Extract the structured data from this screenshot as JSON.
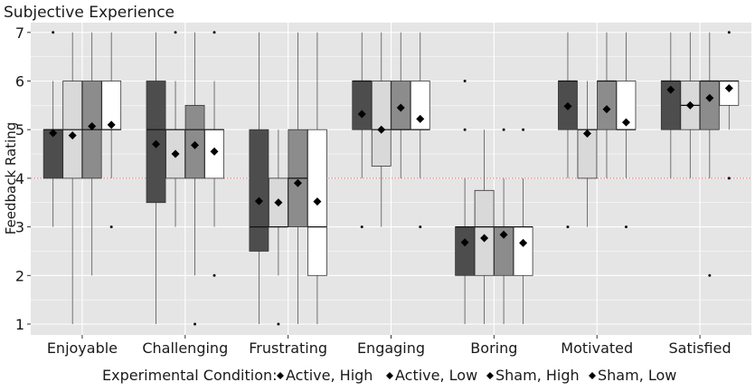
{
  "chart_data": {
    "type": "boxplot",
    "title": "Subjective Experience",
    "xlabel": "",
    "ylabel": "Feedback Rating",
    "ylim": [
      0.6,
      7.3
    ],
    "yticks": [
      1,
      2,
      3,
      4,
      5,
      6,
      7
    ],
    "grid": true,
    "reference_line": {
      "y": 4,
      "color": "#e8707a",
      "style": "dotted"
    },
    "categories": [
      "Enjoyable",
      "Challenging",
      "Frustrating",
      "Engaging",
      "Boring",
      "Motivated",
      "Satisfied"
    ],
    "legend": {
      "title": "Experimental Condition:",
      "position": "bottom"
    },
    "series": [
      {
        "name": "Active, High",
        "color": "#4d4d4d",
        "boxes": [
          {
            "q1": 4,
            "median": 5,
            "q3": 5,
            "lo": 3,
            "hi": 6,
            "mean": 4.93,
            "outliers": [
              7
            ]
          },
          {
            "q1": 3.5,
            "median": 5,
            "q3": 6,
            "lo": 1,
            "hi": 7,
            "mean": 4.7,
            "outliers": []
          },
          {
            "q1": 2.5,
            "median": 3,
            "q3": 5,
            "lo": 1,
            "hi": 7,
            "mean": 3.53,
            "outliers": []
          },
          {
            "q1": 5,
            "median": 6,
            "q3": 6,
            "lo": 4,
            "hi": 7,
            "mean": 5.32,
            "outliers": [
              3
            ]
          },
          {
            "q1": 2,
            "median": 3,
            "q3": 3,
            "lo": 1,
            "hi": 4,
            "mean": 2.68,
            "outliers": [
              5,
              6
            ]
          },
          {
            "q1": 5,
            "median": 6,
            "q3": 6,
            "lo": 4,
            "hi": 7,
            "mean": 5.48,
            "outliers": [
              3
            ]
          },
          {
            "q1": 5,
            "median": 6,
            "q3": 6,
            "lo": 4,
            "hi": 7,
            "mean": 5.82,
            "outliers": []
          }
        ]
      },
      {
        "name": "Active, Low",
        "color": "#d9d9d9",
        "boxes": [
          {
            "q1": 4,
            "median": 5,
            "q3": 6,
            "lo": 1,
            "hi": 7,
            "mean": 4.88,
            "outliers": []
          },
          {
            "q1": 4,
            "median": 5,
            "q3": 5,
            "lo": 3,
            "hi": 6,
            "mean": 4.5,
            "outliers": [
              7
            ]
          },
          {
            "q1": 3,
            "median": 3,
            "q3": 4,
            "lo": 2,
            "hi": 5,
            "mean": 3.5,
            "outliers": [
              1
            ]
          },
          {
            "q1": 4.25,
            "median": 5,
            "q3": 6,
            "lo": 3,
            "hi": 7,
            "mean": 5.0,
            "outliers": []
          },
          {
            "q1": 2,
            "median": 3,
            "q3": 3.75,
            "lo": 1,
            "hi": 5,
            "mean": 2.77,
            "outliers": []
          },
          {
            "q1": 4,
            "median": 5,
            "q3": 5,
            "lo": 3,
            "hi": 6,
            "mean": 4.92,
            "outliers": []
          },
          {
            "q1": 5,
            "median": 5.5,
            "q3": 6,
            "lo": 4,
            "hi": 7,
            "mean": 5.5,
            "outliers": []
          }
        ]
      },
      {
        "name": "Sham, High",
        "color": "#8c8c8c",
        "boxes": [
          {
            "q1": 4,
            "median": 5,
            "q3": 6,
            "lo": 2,
            "hi": 7,
            "mean": 5.07,
            "outliers": []
          },
          {
            "q1": 4,
            "median": 5,
            "q3": 5.5,
            "lo": 2,
            "hi": 7,
            "mean": 4.68,
            "outliers": [
              1
            ]
          },
          {
            "q1": 3,
            "median": 4,
            "q3": 5,
            "lo": 1,
            "hi": 7,
            "mean": 3.9,
            "outliers": []
          },
          {
            "q1": 5,
            "median": 5,
            "q3": 6,
            "lo": 4,
            "hi": 7,
            "mean": 5.45,
            "outliers": []
          },
          {
            "q1": 2,
            "median": 3,
            "q3": 3,
            "lo": 1,
            "hi": 4,
            "mean": 2.84,
            "outliers": [
              5
            ]
          },
          {
            "q1": 5,
            "median": 6,
            "q3": 6,
            "lo": 4,
            "hi": 7,
            "mean": 5.42,
            "outliers": []
          },
          {
            "q1": 5,
            "median": 6,
            "q3": 6,
            "lo": 4,
            "hi": 7,
            "mean": 5.65,
            "outliers": [
              2
            ]
          }
        ]
      },
      {
        "name": "Sham, Low",
        "color": "#ffffff",
        "boxes": [
          {
            "q1": 5,
            "median": 5,
            "q3": 6,
            "lo": 4,
            "hi": 7,
            "mean": 5.1,
            "outliers": [
              3
            ]
          },
          {
            "q1": 4,
            "median": 5,
            "q3": 5,
            "lo": 3,
            "hi": 6,
            "mean": 4.55,
            "outliers": [
              2,
              7
            ]
          },
          {
            "q1": 2,
            "median": 3,
            "q3": 5,
            "lo": 1,
            "hi": 7,
            "mean": 3.52,
            "outliers": []
          },
          {
            "q1": 5,
            "median": 5,
            "q3": 6,
            "lo": 4,
            "hi": 7,
            "mean": 5.22,
            "outliers": [
              3
            ]
          },
          {
            "q1": 2,
            "median": 3,
            "q3": 3,
            "lo": 1,
            "hi": 4,
            "mean": 2.67,
            "outliers": [
              5
            ]
          },
          {
            "q1": 5,
            "median": 5,
            "q3": 6,
            "lo": 4,
            "hi": 7,
            "mean": 5.15,
            "outliers": [
              3
            ]
          },
          {
            "q1": 5.5,
            "median": 6,
            "q3": 6,
            "lo": 5,
            "hi": 6,
            "mean": 5.85,
            "outliers": [
              4,
              7
            ]
          }
        ]
      }
    ]
  }
}
